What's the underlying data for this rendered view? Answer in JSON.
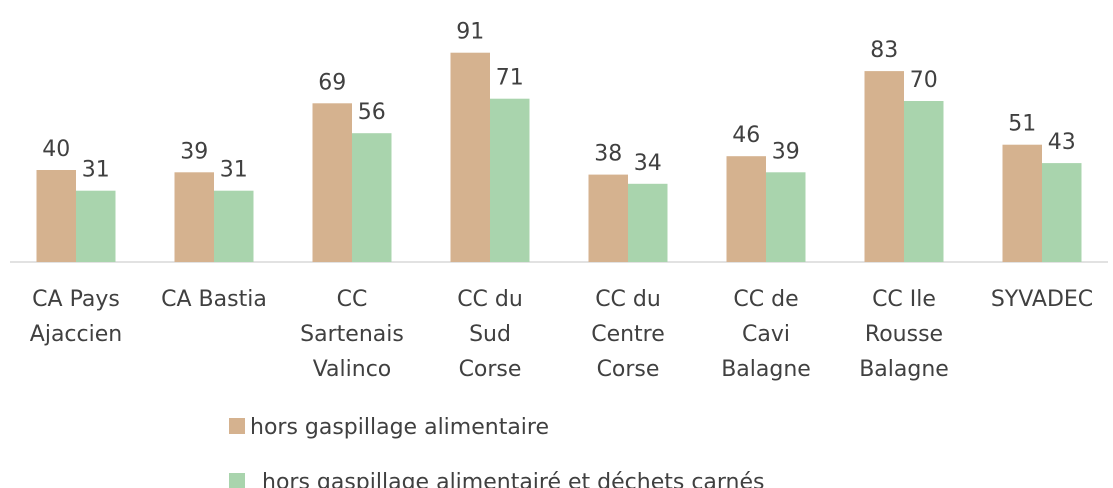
{
  "chart_data": {
    "type": "bar",
    "categories": [
      "CA Pays\nAjaccien",
      "CA Bastia",
      "CC\nSartenais\nValinco",
      "CC du\nSud\nCorse",
      "CC du\nCentre\nCorse",
      "CC de\nCavi\nBalagne",
      "CC Ile\nRousse\nBalagne",
      "SYVADEC"
    ],
    "series": [
      {
        "name": "hors gaspillage alimentaire",
        "color": "#d5b28f",
        "values": [
          40,
          39,
          69,
          91,
          38,
          46,
          83,
          51
        ]
      },
      {
        "name": "hors gaspillage alimentairé et déchets carnés",
        "color": "#a9d4ad",
        "values": [
          31,
          31,
          56,
          71,
          34,
          39,
          70,
          43
        ]
      }
    ]
  }
}
